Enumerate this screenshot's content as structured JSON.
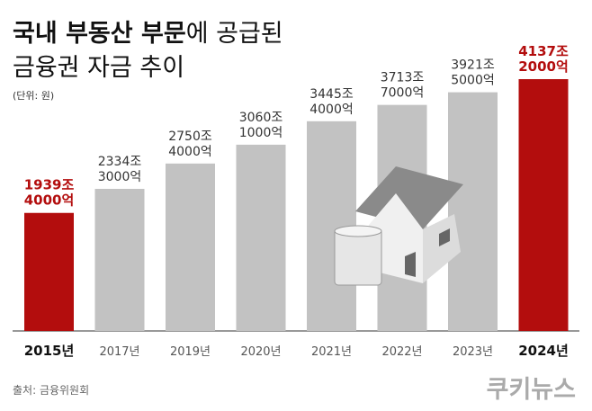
{
  "chart_data": {
    "type": "bar",
    "title": {
      "bold": "국내 부동산 부문",
      "rest": "에 공급된",
      "line2": "금융권 자금 추이"
    },
    "unit_note": "(단위: 원)",
    "categories": [
      "2015년",
      "2017년",
      "2019년",
      "2020년",
      "2021년",
      "2022년",
      "2023년",
      "2024년"
    ],
    "values": [
      1939400000000000,
      2334300000000000,
      2750400000000000,
      3060100000000000,
      3445400000000000,
      3713700000000000,
      3921500000000000,
      4137200000000000
    ],
    "value_labels": [
      [
        "1939조",
        "4000억"
      ],
      [
        "2334조",
        "3000억"
      ],
      [
        "2750조",
        "4000억"
      ],
      [
        "3060조",
        "1000억"
      ],
      [
        "3445조",
        "4000억"
      ],
      [
        "3713조",
        "7000억"
      ],
      [
        "3921조",
        "5000억"
      ],
      [
        "4137조",
        "2000억"
      ]
    ],
    "colors": [
      "#b30d0d",
      "#c2c2c2",
      "#c2c2c2",
      "#c2c2c2",
      "#c2c2c2",
      "#c2c2c2",
      "#c2c2c2",
      "#b30d0d"
    ],
    "highlight": [
      true,
      false,
      false,
      false,
      false,
      false,
      false,
      true
    ],
    "source": "출처: 금융위원회",
    "logo": "쿠키뉴스"
  }
}
